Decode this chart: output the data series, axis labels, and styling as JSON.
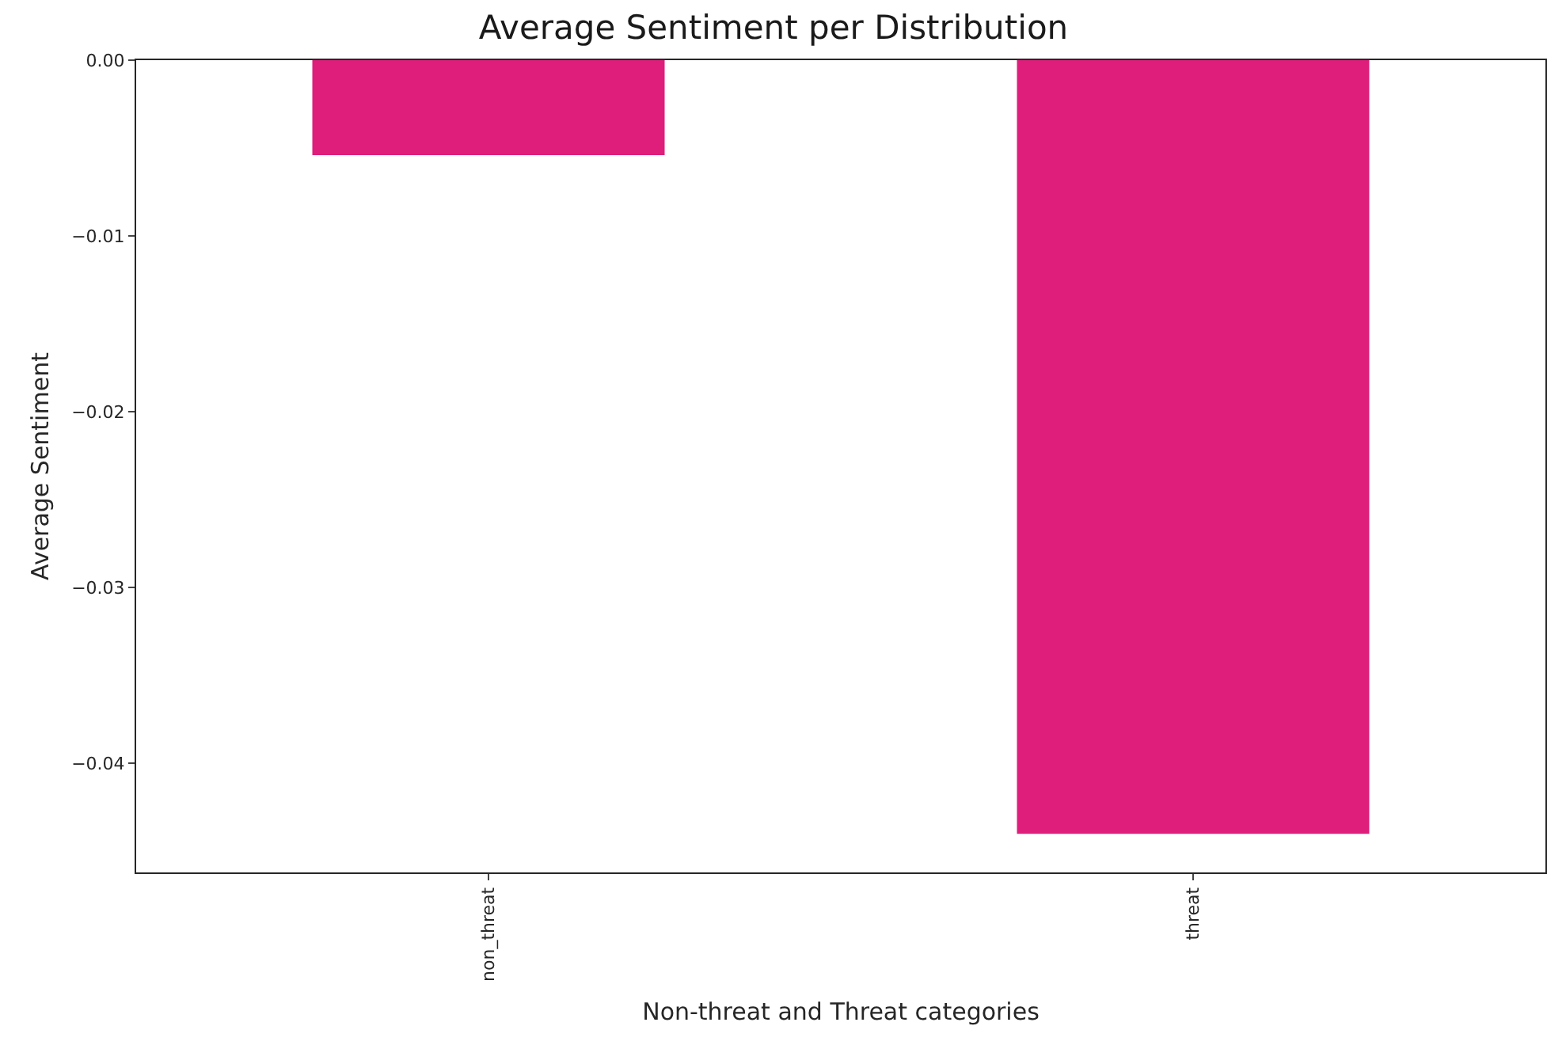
{
  "chart_data": {
    "type": "bar",
    "title": "Average Sentiment per Distribution",
    "xlabel": "Non-threat and Threat categories",
    "ylabel": "Average Sentiment",
    "categories": [
      "non_threat",
      "threat"
    ],
    "values": [
      -0.0054,
      -0.044
    ],
    "color": "#de1e7a",
    "ylim": [
      -0.0462,
      0
    ],
    "yticks": [
      {
        "value": -0.04,
        "label": "−0.04"
      },
      {
        "value": -0.03,
        "label": "−0.03"
      },
      {
        "value": -0.02,
        "label": "−0.02"
      },
      {
        "value": -0.01,
        "label": "−0.01"
      },
      {
        "value": 0,
        "label": "0.00"
      }
    ],
    "grid": false
  }
}
